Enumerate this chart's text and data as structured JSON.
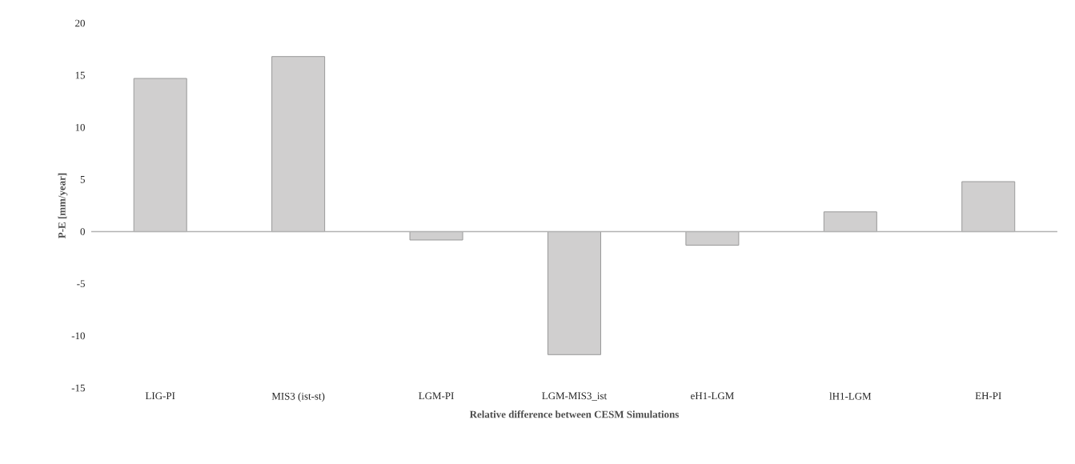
{
  "chart_data": {
    "type": "bar",
    "xlabel": "Relative difference between CESM Simulations",
    "ylabel": "P-E [mm/year]",
    "categories": [
      "LIG-PI",
      "MIS3 (ist-st)",
      "LGM-PI",
      "LGM-MIS3_ist",
      "eH1-LGM",
      "lH1-LGM",
      "EH-PI"
    ],
    "values": [
      14.7,
      16.8,
      -0.8,
      -11.8,
      -1.3,
      1.9,
      4.8
    ],
    "color": "#d0cfcf",
    "ylim": [
      -15,
      20
    ],
    "yticks": [
      -15,
      -10,
      -5,
      0,
      5,
      10,
      15,
      20
    ]
  }
}
